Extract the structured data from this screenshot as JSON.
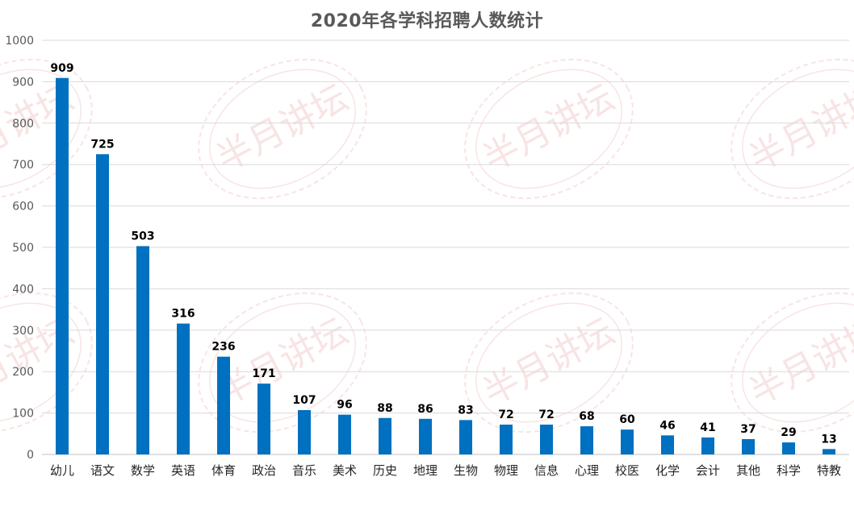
{
  "chart_data": {
    "type": "bar",
    "title": "2020年各学科招聘人数统计",
    "categories": [
      "幼儿",
      "语文",
      "数学",
      "英语",
      "体育",
      "政治",
      "音乐",
      "美术",
      "历史",
      "地理",
      "生物",
      "物理",
      "信息",
      "心理",
      "校医",
      "化学",
      "会计",
      "其他",
      "科学",
      "特教"
    ],
    "series": [
      {
        "values": [
          909,
          725,
          503,
          316,
          236,
          171,
          107,
          96,
          88,
          86,
          83,
          72,
          72,
          68,
          60,
          46,
          41,
          37,
          29,
          13
        ]
      }
    ],
    "ylim": [
      0,
      1000
    ],
    "yticks": [
      0,
      100,
      200,
      300,
      400,
      500,
      600,
      700,
      800,
      900,
      1000
    ],
    "grid": true,
    "legend": "none",
    "bar_color": "#0070C0",
    "watermark": "半月讲坛"
  }
}
